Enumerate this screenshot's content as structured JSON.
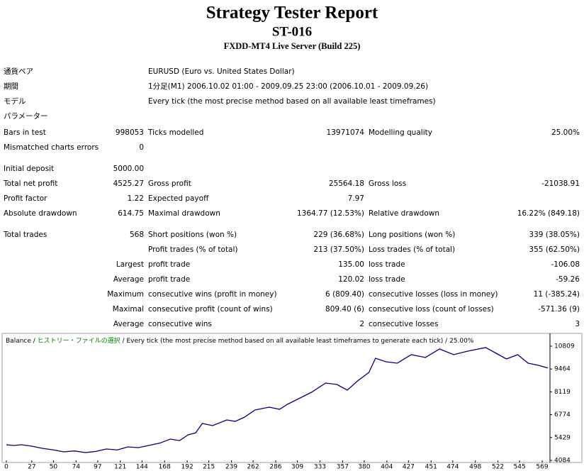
{
  "header": {
    "title": "Strategy Tester Report",
    "subtitle": "ST-016",
    "server": "FXDD-MT4 Live Server (Build 225)"
  },
  "info_rows": [
    [
      "通貨ペア",
      "EURUSD (Euro vs. United States Dollar)"
    ],
    [
      "期間",
      "1分足(M1) 2006.10.02 01:00 - 2009.09.25 23:00 (2006.10.01 - 2009.09.26)"
    ],
    [
      "モデル",
      "Every tick (the most precise method based on all available least timeframes)"
    ],
    [
      "パラメーター",
      null
    ]
  ],
  "stats_rows": [
    [
      "Bars in test",
      "998053",
      "Ticks modelled",
      "13971074",
      "Modelling quality",
      "25.00%"
    ],
    [
      "Mismatched charts errors",
      "0",
      null,
      null,
      null,
      null
    ],
    [
      "Initial deposit",
      "5000.00",
      null,
      null,
      null,
      null
    ],
    [
      "Total net profit",
      "4525.27",
      "Gross profit",
      "25564.18",
      "Gross loss",
      "-21038.91"
    ],
    [
      "Profit factor",
      "1.22",
      "Expected payoff",
      "7.97",
      null,
      null
    ],
    [
      "Absolute drawdown",
      "614.75",
      "Maximal drawdown",
      "1364.77 (12.53%)",
      "Relative drawdown",
      "16.22% (849.18)"
    ],
    [
      "Total trades",
      "568",
      "Short positions (won %)",
      "229 (36.68%)",
      "Long positions (won %)",
      "339 (38.05%)"
    ],
    [
      null,
      null,
      "Profit trades (% of total)",
      "213 (37.50%)",
      "Loss trades (% of total)",
      "355 (62.50%)"
    ]
  ],
  "detail_rows": [
    [
      "Largest",
      "profit trade",
      "135.00",
      "loss trade",
      "-106.08"
    ],
    [
      "Average",
      "profit trade",
      "120.02",
      "loss trade",
      "-59.26"
    ],
    [
      "Maximum",
      "consecutive wins (profit in money)",
      "6 (809.40)",
      "consecutive losses (loss in money)",
      "11 (-385.24)"
    ],
    [
      "Maximal",
      "consecutive profit (count of wins)",
      "809.40 (6)",
      "consecutive loss (count of losses)",
      "-571.36 (9)"
    ],
    [
      "Average",
      "consecutive wins",
      "2",
      "consecutive losses",
      "3"
    ]
  ],
  "chart_data": {
    "type": "line",
    "legend": [
      "Balance",
      "ヒストリー・ファイルの選択",
      "Every tick (the most precise method based on all available least timeframes to generate each tick)",
      "25.00%"
    ],
    "legend_separator": " / ",
    "x": [
      0,
      8,
      16,
      27,
      38,
      50,
      61,
      72,
      84,
      95,
      106,
      118,
      129,
      140,
      151,
      163,
      174,
      184,
      193,
      201,
      208,
      219,
      234,
      243,
      253,
      264,
      279,
      290,
      299,
      309,
      324,
      339,
      351,
      362,
      373,
      385,
      392,
      403,
      415,
      430,
      445,
      460,
      475,
      490,
      509,
      520,
      531,
      543,
      554,
      565,
      575
    ],
    "series": [
      {
        "name": "Balance",
        "color": "#000080",
        "values": [
          5000,
          4960,
          5003,
          4920,
          4794,
          4700,
          4585,
          4640,
          4543,
          4610,
          4752,
          4700,
          4877,
          4830,
          4961,
          5100,
          5337,
          5250,
          5588,
          5700,
          6256,
          6131,
          6465,
          6380,
          6632,
          7050,
          7217,
          7091,
          7400,
          7676,
          8094,
          8637,
          8553,
          8219,
          8762,
          9263,
          10099,
          9890,
          9806,
          10308,
          10141,
          10642,
          10308,
          10517,
          10726,
          10391,
          10057,
          10308,
          9806,
          9681,
          9525
        ]
      }
    ],
    "xlim": [
      0,
      575
    ],
    "ylim": [
      4084,
      10809
    ],
    "xticks": [
      0,
      27,
      50,
      74,
      97,
      121,
      144,
      168,
      192,
      215,
      239,
      262,
      286,
      309,
      333,
      357,
      380,
      404,
      427,
      451,
      474,
      498,
      522,
      545,
      569
    ],
    "yticks": [
      4084,
      5429,
      6774,
      8119,
      9464,
      10809
    ]
  }
}
